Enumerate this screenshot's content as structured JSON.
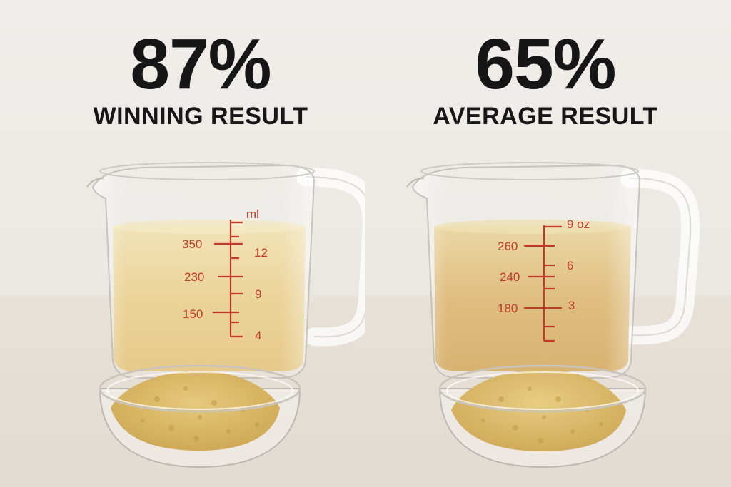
{
  "left": {
    "percent": "87%",
    "label": "WINNING RESULT",
    "scale_unit": "ml",
    "scale_left": [
      "350",
      "230",
      "150"
    ],
    "scale_right": [
      "12",
      "9",
      "4"
    ],
    "liquid_color": "#e9cf8f"
  },
  "right": {
    "percent": "65%",
    "label": "AVERAGE RESULT",
    "scale_unit": "9 oz",
    "scale_left": [
      "260",
      "240",
      "180"
    ],
    "scale_right": [
      "6",
      "3"
    ],
    "liquid_color": "#dcb773"
  },
  "colors": {
    "marking": "#c0392b",
    "text": "#161616",
    "powder": "#d9b867"
  }
}
